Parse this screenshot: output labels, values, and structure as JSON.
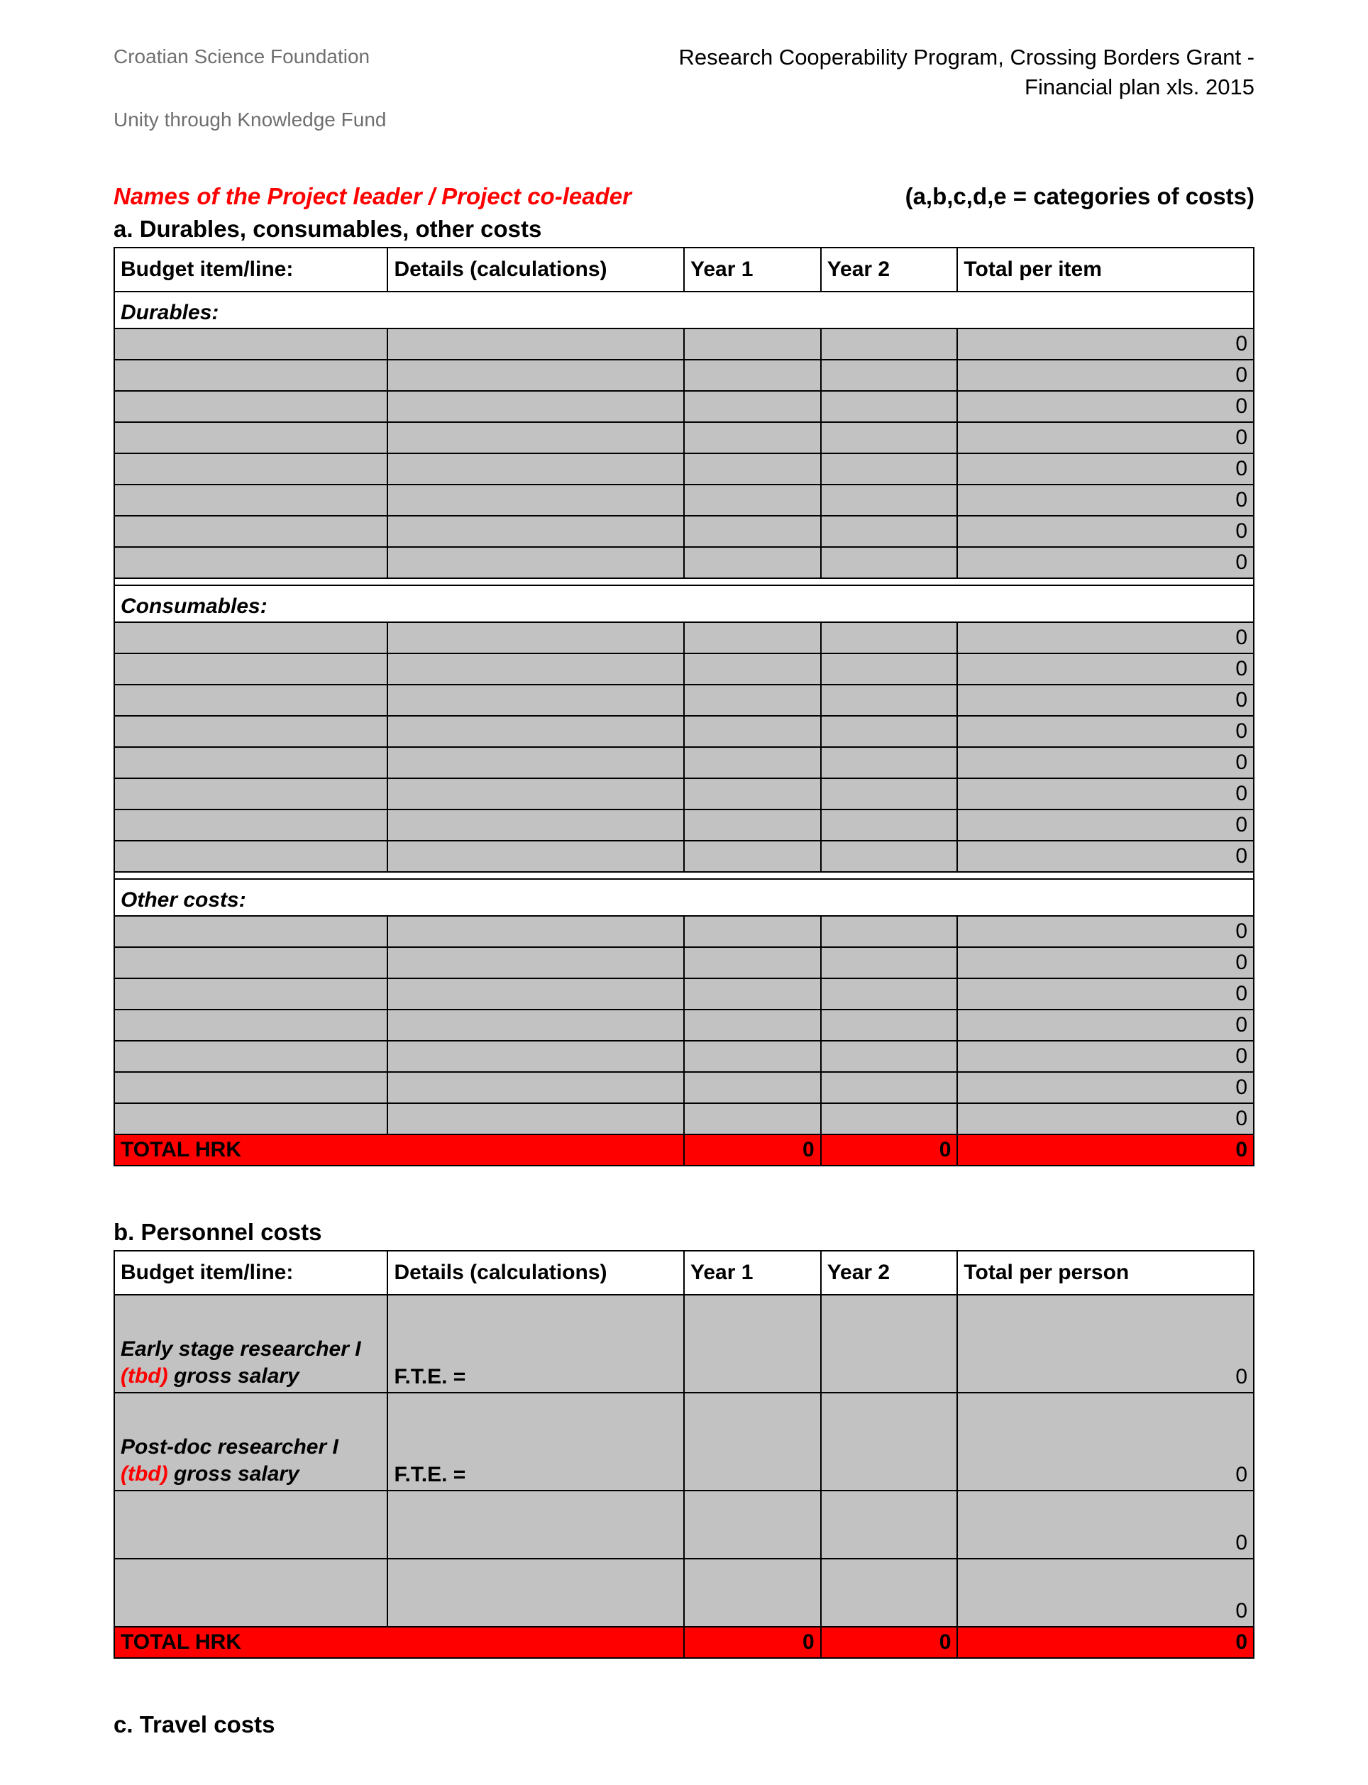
{
  "header": {
    "org1": "Croatian Science Foundation",
    "org2": "Unity through Knowledge Fund",
    "program_line1": "Research Cooperability Program, Crossing Borders Grant -",
    "program_line2": "Financial plan xls. 2015"
  },
  "names_label": "Names of the Project leader / Project co-leader",
  "categories_label": "(a,b,c,d,e = categories of costs)",
  "section_a": {
    "title": "a. Durables, consumables, other costs",
    "columns": {
      "c1": "Budget item/line:",
      "c2": "Details (calculations)",
      "c3": "Year 1",
      "c4": "Year 2",
      "c5": "Total per item"
    },
    "groups": [
      {
        "label": "Durables:",
        "rows": 8
      },
      {
        "label": "Consumables:",
        "rows": 8
      },
      {
        "label": "Other costs:",
        "rows": 7
      }
    ],
    "zero": "0",
    "total_label": "TOTAL HRK",
    "total_y1": "0",
    "total_y2": "0",
    "total_sum": "0"
  },
  "section_b": {
    "title": "b. Personnel costs",
    "columns": {
      "c1": "Budget item/line:",
      "c2": "Details (calculations)",
      "c3": "Year 1",
      "c4": "Year 2",
      "c5": "Total per person"
    },
    "items": [
      {
        "line1": "Early stage researcher I",
        "tbd": "(tbd)",
        "line2": " gross salary",
        "details": "F.T.E. =",
        "total": "0"
      },
      {
        "line1": "Post-doc researcher I",
        "tbd": "(tbd)",
        "line2": " gross salary",
        "details": "F.T.E. =",
        "total": "0"
      }
    ],
    "blank_total": "0",
    "total_label": "TOTAL HRK",
    "total_y1": "0",
    "total_y2": "0",
    "total_sum": "0"
  },
  "section_c": {
    "title": "c. Travel costs"
  },
  "colors": {
    "grey_cell": "#c2c2c2",
    "red_row": "#ff0000",
    "header_grey": "#6f6f6f",
    "accent_red": "#ff0000",
    "border": "#000000",
    "background": "#ffffff"
  }
}
